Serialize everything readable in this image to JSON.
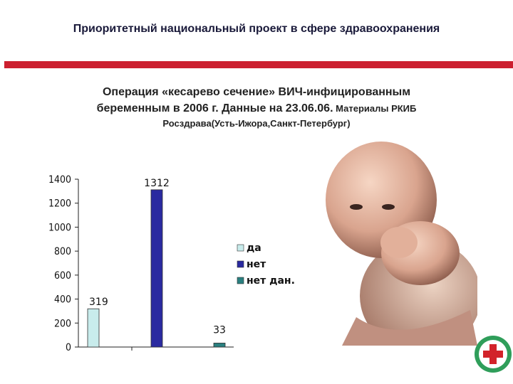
{
  "header": {
    "title": "Приоритетный национальный проект в сфере здравоохранения"
  },
  "subtitle": {
    "line1": "Операция «кесарево сечение» ВИЧ-инфицированным",
    "line2_main": "беременным в 2006 г. Данные на 23.06.06.",
    "line2_small": " Материалы РКИБ",
    "line3": "Росздрава(Усть-Ижора,Санкт-Петербург)"
  },
  "colors": {
    "accent_bar": "#cc1f2f",
    "series_da": "#c8ecec",
    "series_net": "#2a2aa0",
    "series_net_dan": "#2a8080"
  },
  "chart_data": {
    "type": "bar",
    "categories": [
      "да",
      "нет",
      "нет дан."
    ],
    "values": [
      319,
      1312,
      33
    ],
    "ylim": [
      0,
      1400
    ],
    "yticks": [
      0,
      200,
      400,
      600,
      800,
      1000,
      1200,
      1400
    ],
    "legend": [
      "да",
      "нет",
      "нет дан."
    ],
    "legend_position": "right",
    "grid": false
  },
  "images": {
    "photo": "infant-photo",
    "badge": "red-cross-emblem"
  }
}
